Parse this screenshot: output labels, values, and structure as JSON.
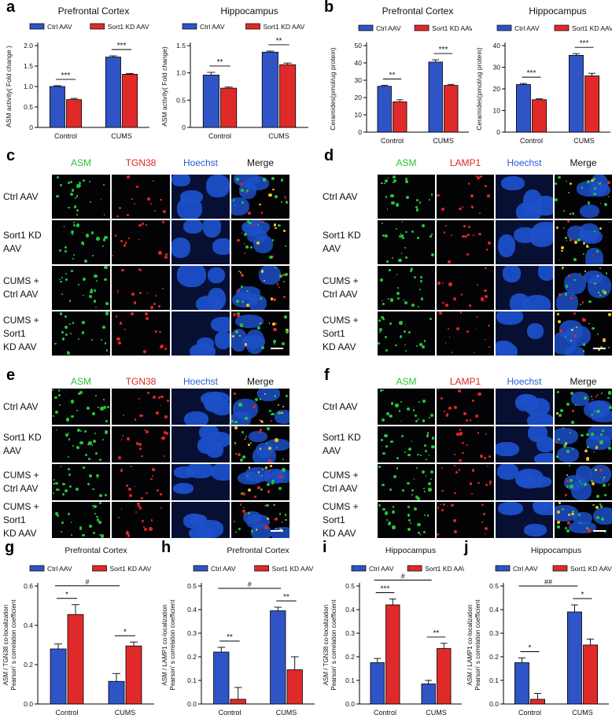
{
  "panels": {
    "a": "a",
    "b": "b",
    "c": "c",
    "d": "d",
    "e": "e",
    "f": "f",
    "g": "g",
    "h": "h",
    "i": "i",
    "j": "j"
  },
  "colors": {
    "ctrl": "#2f54c6",
    "kd": "#e02a2a",
    "asm": "#27c33a",
    "tgn38": "#e02525",
    "lamp1": "#e02525",
    "hoechst": "#2a5bd6"
  },
  "image_panels": [
    {
      "id": "c",
      "columns": [
        "ASM",
        "TGN38",
        "Hoechst",
        "Merge"
      ],
      "rows": [
        [
          "Ctrl AAV"
        ],
        [
          "Sort1 KD",
          "AAV"
        ],
        [
          "CUMS +",
          "Ctrl AAV"
        ],
        [
          "CUMS +",
          "Sort1",
          "KD AAV"
        ]
      ]
    },
    {
      "id": "d",
      "columns": [
        "ASM",
        "LAMP1",
        "Hoechst",
        "Merge"
      ],
      "rows": [
        [
          "Ctrl AAV"
        ],
        [
          "Sort1 KD",
          "AAV"
        ],
        [
          "CUMS +",
          "Ctrl AAV"
        ],
        [
          "CUMS +",
          "Sort1",
          "KD AAV"
        ]
      ]
    },
    {
      "id": "e",
      "columns": [
        "ASM",
        "TGN38",
        "Hoechst",
        "Merge"
      ],
      "rows": [
        [
          "Ctrl AAV"
        ],
        [
          "Sort1 KD",
          "AAV"
        ],
        [
          "CUMS +",
          "Ctrl AAV"
        ],
        [
          "CUMS +",
          "Sort1",
          "KD AAV"
        ]
      ]
    },
    {
      "id": "f",
      "columns": [
        "ASM",
        "LAMP1",
        "Hoechst",
        "Merge"
      ],
      "rows": [
        [
          "Ctrl AAV"
        ],
        [
          "Sort1 KD",
          "AAV"
        ],
        [
          "CUMS +",
          "Ctrl AAV"
        ],
        [
          "CUMS +",
          "Sort1",
          "KD AAV"
        ]
      ]
    }
  ],
  "chart_data": [
    {
      "id": "a1",
      "type": "bar",
      "title": "Prefrontal Cortex",
      "ylabel": "ASM activity( Fold change )",
      "categories": [
        "Control",
        "CUMS"
      ],
      "ylim": [
        0,
        2.0
      ],
      "yticks": [
        "0",
        "0.5",
        "1.0",
        "1.5",
        "2.0"
      ],
      "legend": [
        "Ctrl AAV",
        "Sort1 KD AAV"
      ],
      "series": [
        {
          "name": "Ctrl AAV",
          "values": [
            1.0,
            1.72
          ],
          "errors": [
            0.02,
            0.03
          ]
        },
        {
          "name": "Sort1 KD AAV",
          "values": [
            0.68,
            1.3
          ],
          "errors": [
            0.03,
            0.02
          ]
        }
      ],
      "sig": [
        {
          "cat": 0,
          "label": "***"
        },
        {
          "cat": 1,
          "label": "***"
        }
      ]
    },
    {
      "id": "a2",
      "type": "bar",
      "title": "Hippocampus",
      "ylabel": "ASM activity( Fold change)",
      "categories": [
        "Control",
        "CUMS"
      ],
      "ylim": [
        0,
        1.5
      ],
      "yticks": [
        "0",
        "0.5",
        "1.0",
        "1.5"
      ],
      "legend": [
        "Ctrl AAV",
        "Sort1 KD AAV"
      ],
      "series": [
        {
          "name": "Ctrl AAV",
          "values": [
            0.96,
            1.38
          ],
          "errors": [
            0.05,
            0.02
          ]
        },
        {
          "name": "Sort1 KD AAV",
          "values": [
            0.72,
            1.15
          ],
          "errors": [
            0.02,
            0.03
          ]
        }
      ],
      "sig": [
        {
          "cat": 0,
          "label": "**"
        },
        {
          "cat": 1,
          "label": "**"
        }
      ]
    },
    {
      "id": "b1",
      "type": "bar",
      "title": "Prefrontal Cortex",
      "ylabel": "Ceramides(pmol/ug protein)",
      "categories": [
        "Control",
        "CUMS"
      ],
      "ylim": [
        0,
        50
      ],
      "yticks": [
        "0",
        "10",
        "20",
        "30",
        "40",
        "50"
      ],
      "legend": [
        "Ctrl AAV",
        "Sort1 KD AAV"
      ],
      "series": [
        {
          "name": "Ctrl AAV",
          "values": [
            26.5,
            40.5
          ],
          "errors": [
            0.6,
            1.3
          ]
        },
        {
          "name": "Sort1 KD AAV",
          "values": [
            17.5,
            27.0
          ],
          "errors": [
            1.2,
            0.6
          ]
        }
      ],
      "sig": [
        {
          "cat": 0,
          "label": "**"
        },
        {
          "cat": 1,
          "label": "***"
        }
      ]
    },
    {
      "id": "b2",
      "type": "bar",
      "title": "Hippocampus",
      "ylabel": "Ceramides(pmol/ug protein)",
      "categories": [
        "Control",
        "CUMS"
      ],
      "ylim": [
        0,
        40
      ],
      "yticks": [
        "0",
        "10",
        "20",
        "30",
        "40"
      ],
      "legend": [
        "Ctrl AAV",
        "Sort1 KD AAV"
      ],
      "series": [
        {
          "name": "Ctrl AAV",
          "values": [
            22.0,
            35.5
          ],
          "errors": [
            0.5,
            0.8
          ]
        },
        {
          "name": "Sort1 KD AAV",
          "values": [
            15.0,
            26.0
          ],
          "errors": [
            0.4,
            1.2
          ]
        }
      ],
      "sig": [
        {
          "cat": 0,
          "label": "***"
        },
        {
          "cat": 1,
          "label": "***"
        }
      ]
    },
    {
      "id": "g",
      "type": "bar",
      "title": "Prefrontal Cortex",
      "ylabel": "ASM / TGN38 co-localization Pearson' s correlation coefficient",
      "categories": [
        "Control",
        "CUMS"
      ],
      "ylim": [
        0,
        0.6
      ],
      "yticks": [
        "0.0",
        "0.2",
        "0.4",
        "0.6"
      ],
      "legend": [
        "Ctrl AAV",
        "Sort1 KD AAV"
      ],
      "series": [
        {
          "name": "Ctrl AAV",
          "values": [
            0.28,
            0.115
          ],
          "errors": [
            0.025,
            0.04
          ]
        },
        {
          "name": "Sort1 KD AAV",
          "values": [
            0.455,
            0.295
          ],
          "errors": [
            0.05,
            0.02
          ]
        }
      ],
      "sig": [
        {
          "cat": 0,
          "label": "*"
        },
        {
          "cat": 1,
          "label": "*"
        }
      ],
      "between": "#"
    },
    {
      "id": "h",
      "type": "bar",
      "title": "Prefrontal Cortex",
      "ylabel": "ASM / LAMP1 co-localization Pearson' s correlation coefficient",
      "categories": [
        "Control",
        "CUMS"
      ],
      "ylim": [
        0,
        0.5
      ],
      "yticks": [
        "0.0",
        "0.1",
        "0.2",
        "0.3",
        "0.4",
        "0.5"
      ],
      "legend": [
        "Ctrl AAV",
        "Sort1 KD AAV"
      ],
      "series": [
        {
          "name": "Ctrl AAV",
          "values": [
            0.22,
            0.395
          ],
          "errors": [
            0.02,
            0.015
          ]
        },
        {
          "name": "Sort1 KD AAV",
          "values": [
            0.02,
            0.145
          ],
          "errors": [
            0.05,
            0.055
          ]
        }
      ],
      "sig": [
        {
          "cat": 0,
          "label": "**"
        },
        {
          "cat": 1,
          "label": "**"
        }
      ],
      "between": "#"
    },
    {
      "id": "i",
      "type": "bar",
      "title": "Hippocampus",
      "ylabel": "ASM / TGN38 co-localization Pearson' s correlation coefficient",
      "categories": [
        "Control",
        "CUMS"
      ],
      "ylim": [
        0,
        0.5
      ],
      "yticks": [
        "0.0",
        "0.1",
        "0.2",
        "0.3",
        "0.4",
        "0.5"
      ],
      "legend": [
        "Ctrl AAV",
        "Sort1 KD AAV"
      ],
      "series": [
        {
          "name": "Ctrl AAV",
          "values": [
            0.175,
            0.085
          ],
          "errors": [
            0.018,
            0.015
          ]
        },
        {
          "name": "Sort1 KD AAV",
          "values": [
            0.42,
            0.235
          ],
          "errors": [
            0.025,
            0.022
          ]
        }
      ],
      "sig": [
        {
          "cat": 0,
          "label": "***"
        },
        {
          "cat": 1,
          "label": "**"
        }
      ],
      "between": "#"
    },
    {
      "id": "j",
      "type": "bar",
      "title": "Hippocampus",
      "ylabel": "ASM / LAMP1 co-localization Pearson' s correlation coefficient",
      "categories": [
        "Control",
        "CUMS"
      ],
      "ylim": [
        0,
        0.5
      ],
      "yticks": [
        "0.0",
        "0.1",
        "0.2",
        "0.3",
        "0.4",
        "0.5"
      ],
      "legend": [
        "Ctrl AAV",
        "Sort1 KD AAV"
      ],
      "series": [
        {
          "name": "Ctrl AAV",
          "values": [
            0.175,
            0.39
          ],
          "errors": [
            0.02,
            0.03
          ]
        },
        {
          "name": "Sort1 KD AAV",
          "values": [
            0.02,
            0.25
          ],
          "errors": [
            0.025,
            0.025
          ]
        }
      ],
      "sig": [
        {
          "cat": 0,
          "label": "*"
        },
        {
          "cat": 1,
          "label": "*"
        }
      ],
      "between": "##"
    }
  ]
}
